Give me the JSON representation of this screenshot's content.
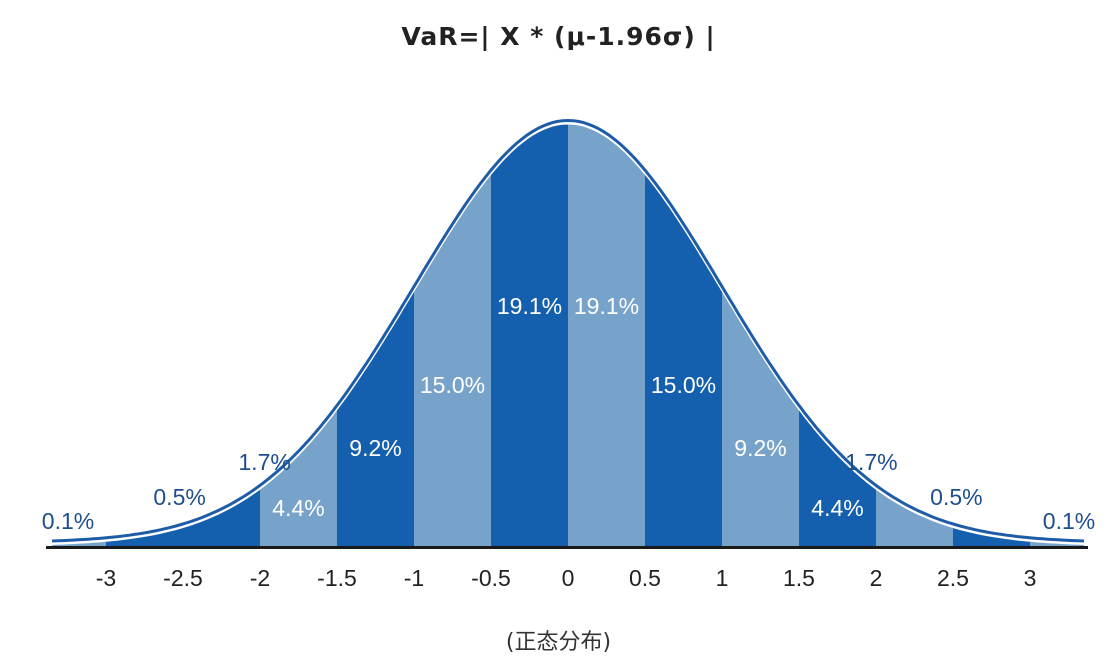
{
  "chart_data": {
    "type": "area",
    "title": "VaR=| X * (μ-1.96σ) |",
    "xlabel": "(正态分布)",
    "ylabel": "",
    "x_ticks": [
      "-3",
      "-2.5",
      "-2",
      "-1.5",
      "-1",
      "-0.5",
      "0",
      "0.5",
      "1",
      "1.5",
      "2",
      "2.5",
      "3"
    ],
    "xlim": [
      -3.35,
      3.35
    ],
    "distribution": "standard normal",
    "bands": [
      {
        "from": -3.0,
        "to": -2.5,
        "label": "0.5%",
        "label_inside": false,
        "shade": "dark"
      },
      {
        "from": -2.5,
        "to": -2.0,
        "label": "1.7%",
        "label_inside": false,
        "shade": "dark"
      },
      {
        "from": -2.0,
        "to": -1.5,
        "label": "4.4%",
        "label_inside": true,
        "shade": "light"
      },
      {
        "from": -1.5,
        "to": -1.0,
        "label": "9.2%",
        "label_inside": true,
        "shade": "dark"
      },
      {
        "from": -1.0,
        "to": -0.5,
        "label": "15.0%",
        "label_inside": true,
        "shade": "light"
      },
      {
        "from": -0.5,
        "to": 0.0,
        "label": "19.1%",
        "label_inside": true,
        "shade": "dark"
      },
      {
        "from": 0.0,
        "to": 0.5,
        "label": "19.1%",
        "label_inside": true,
        "shade": "light"
      },
      {
        "from": 0.5,
        "to": 1.0,
        "label": "15.0%",
        "label_inside": true,
        "shade": "dark"
      },
      {
        "from": 1.0,
        "to": 1.5,
        "label": "9.2%",
        "label_inside": true,
        "shade": "light"
      },
      {
        "from": 1.5,
        "to": 2.0,
        "label": "4.4%",
        "label_inside": true,
        "shade": "dark"
      },
      {
        "from": 2.0,
        "to": 2.5,
        "label": "1.7%",
        "label_inside": false,
        "shade": "light"
      },
      {
        "from": 2.5,
        "to": 3.0,
        "label": "0.5%",
        "label_inside": false,
        "shade": "dark"
      }
    ],
    "tails": [
      {
        "side": "left",
        "label": "0.1%"
      },
      {
        "side": "right",
        "label": "0.1%"
      }
    ],
    "colors": {
      "dark": "#1560ae",
      "light": "#77a3ca",
      "curve": "#1f5ca8",
      "label_outside": "#1e4f8c",
      "label_inside": "#ffffff",
      "axis": "#1a1a1a"
    }
  }
}
